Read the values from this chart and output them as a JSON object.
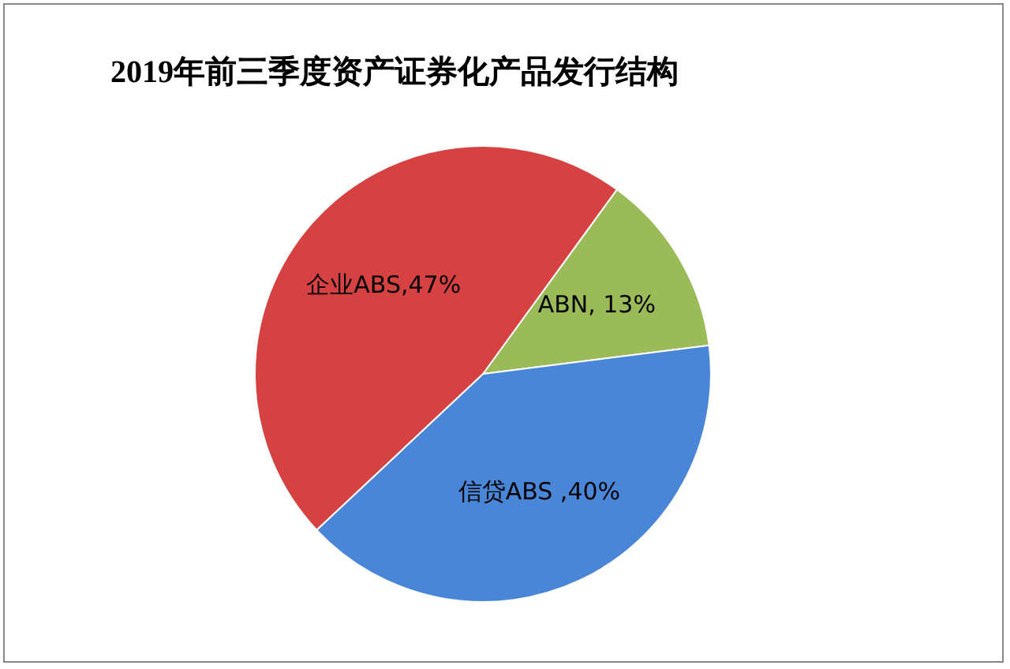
{
  "chart_data": {
    "type": "pie",
    "title": "2019年前三季度资产证券化产品发行结构",
    "categories": [
      "ABN",
      "信贷ABS",
      "企业ABS"
    ],
    "values": [
      13,
      40,
      47
    ],
    "colors": [
      "#9bbb59",
      "#4a86d8",
      "#d64141"
    ],
    "value_labels": [
      ", 13%",
      " ,40%",
      ",47%"
    ],
    "legend": false
  }
}
